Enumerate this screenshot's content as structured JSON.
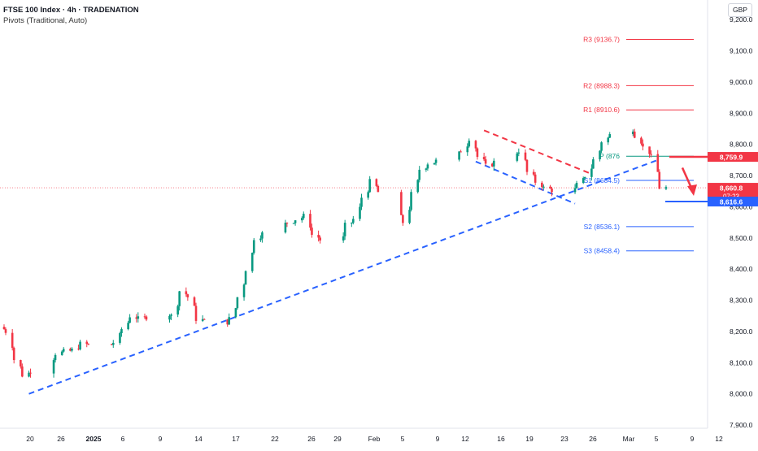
{
  "header": {
    "title": "FTSE 100 Index · 4h · TRADENATION",
    "indicator": "Pivots (Traditional, Auto)",
    "currency": "GBP"
  },
  "chart_data": {
    "type": "candlestick",
    "title": "FTSE 100 Index · 4h · TRADENATION",
    "ylim": [
      7900,
      9250
    ],
    "y_ticks": [
      7900,
      8000,
      8100,
      8200,
      8300,
      8400,
      8500,
      8600,
      8700,
      8800,
      8900,
      9000,
      9100,
      9200
    ],
    "y_tick_labels": [
      "7,900.0",
      "8,000.0",
      "8,100.0",
      "8,200.0",
      "8,300.0",
      "8,400.0",
      "8,500.0",
      "8,600.0",
      "8,700.0",
      "8,800.0",
      "8,900.0",
      "9,000.0",
      "9,100.0",
      "9,200.0"
    ],
    "x_ticks": [
      {
        "label": "20",
        "bold": false
      },
      {
        "label": "26",
        "bold": false
      },
      {
        "label": "2025",
        "bold": true
      },
      {
        "label": "6",
        "bold": false
      },
      {
        "label": "9",
        "bold": false
      },
      {
        "label": "14",
        "bold": false
      },
      {
        "label": "17",
        "bold": false
      },
      {
        "label": "22",
        "bold": false
      },
      {
        "label": "26",
        "bold": false
      },
      {
        "label": "29",
        "bold": false
      },
      {
        "label": "Feb",
        "bold": false
      },
      {
        "label": "5",
        "bold": false
      },
      {
        "label": "9",
        "bold": false
      },
      {
        "label": "12",
        "bold": false
      },
      {
        "label": "16",
        "bold": false
      },
      {
        "label": "19",
        "bold": false
      },
      {
        "label": "23",
        "bold": false
      },
      {
        "label": "26",
        "bold": false
      },
      {
        "label": "Mar",
        "bold": false
      },
      {
        "label": "5",
        "bold": false
      },
      {
        "label": "9",
        "bold": false
      },
      {
        "label": "12",
        "bold": false
      }
    ],
    "pivots": [
      {
        "name": "R3",
        "label": "R3 (9136.7)",
        "value": 9136.7,
        "color": "#f23645"
      },
      {
        "name": "R2",
        "label": "R2 (8988.3)",
        "value": 8988.3,
        "color": "#f23645"
      },
      {
        "name": "R1",
        "label": "R1 (8910.6)",
        "value": 8910.6,
        "color": "#f23645"
      },
      {
        "name": "P",
        "label": "P (876",
        "value": 8762,
        "color": "#089981"
      },
      {
        "name": "S1",
        "label": "S1 (8684.5)",
        "value": 8684.5,
        "color": "#2962ff"
      },
      {
        "name": "S2",
        "label": "S2 (8536.1)",
        "value": 8536.1,
        "color": "#2962ff"
      },
      {
        "name": "S3",
        "label": "S3 (8458.4)",
        "value": 8458.4,
        "color": "#2962ff"
      }
    ],
    "price_badges": [
      {
        "label": "8,759.9",
        "value": 8759.9,
        "color": "#f23645"
      },
      {
        "label": "8,660.8",
        "value": 8660.8,
        "sub": "07:23",
        "color": "#f23645"
      },
      {
        "label": "8,616.6",
        "value": 8616.6,
        "color": "#2962ff"
      }
    ],
    "current_price": 8660.8,
    "resistance_level": 8759.9,
    "target_level": 8616.6,
    "trendlines": [
      {
        "name": "uptrend-support",
        "color": "#2962ff",
        "dashed": true,
        "points": [
          {
            "x": "2024-12-20",
            "y": 8000
          },
          {
            "x": "2025-03-06",
            "y": 8750
          }
        ]
      },
      {
        "name": "channel-upper",
        "color": "#f23645",
        "dashed": true,
        "points": [
          {
            "x": "2025-02-13",
            "y": 8845
          },
          {
            "x": "2025-02-26",
            "y": 8705
          }
        ]
      },
      {
        "name": "channel-lower",
        "color": "#2962ff",
        "dashed": true,
        "points": [
          {
            "x": "2025-02-12",
            "y": 8745
          },
          {
            "x": "2025-02-24",
            "y": 8610
          }
        ]
      }
    ],
    "price_path": [
      [
        "2024-12-17",
        8215
      ],
      [
        "2024-12-18",
        8200
      ],
      [
        "2024-12-19",
        8110
      ],
      [
        "2024-12-20",
        8060
      ],
      [
        "2024-12-23",
        8100
      ],
      [
        "2024-12-24",
        8130
      ],
      [
        "2024-12-26",
        8140
      ],
      [
        "2024-12-27",
        8160
      ],
      [
        "2024-12-30",
        8150
      ],
      [
        "2024-12-31",
        8165
      ],
      [
        "2025-01-02",
        8250
      ],
      [
        "2025-01-03",
        8240
      ],
      [
        "2025-01-06",
        8260
      ],
      [
        "2025-01-07",
        8250
      ],
      [
        "2025-01-08",
        8330
      ],
      [
        "2025-01-09",
        8310
      ],
      [
        "2025-01-10",
        8240
      ],
      [
        "2025-01-13",
        8220
      ],
      [
        "2025-01-14",
        8240
      ],
      [
        "2025-01-15",
        8310
      ],
      [
        "2025-01-16",
        8400
      ],
      [
        "2025-01-17",
        8500
      ],
      [
        "2025-01-20",
        8540
      ],
      [
        "2025-01-21",
        8550
      ],
      [
        "2025-01-22",
        8560
      ],
      [
        "2025-01-23",
        8570
      ],
      [
        "2025-01-24",
        8510
      ],
      [
        "2025-01-27",
        8460
      ],
      [
        "2025-01-28",
        8540
      ],
      [
        "2025-01-29",
        8560
      ],
      [
        "2025-01-30",
        8630
      ],
      [
        "2025-01-31",
        8680
      ],
      [
        "2025-02-03",
        8580
      ],
      [
        "2025-02-04",
        8550
      ],
      [
        "2025-02-05",
        8640
      ],
      [
        "2025-02-06",
        8720
      ],
      [
        "2025-02-07",
        8740
      ],
      [
        "2025-02-10",
        8760
      ],
      [
        "2025-02-11",
        8780
      ],
      [
        "2025-02-12",
        8820
      ],
      [
        "2025-02-13",
        8760
      ],
      [
        "2025-02-14",
        8730
      ],
      [
        "2025-02-17",
        8770
      ],
      [
        "2025-02-18",
        8780
      ],
      [
        "2025-02-19",
        8710
      ],
      [
        "2025-02-20",
        8680
      ],
      [
        "2025-02-21",
        8660
      ],
      [
        "2025-02-24",
        8640
      ],
      [
        "2025-02-25",
        8670
      ],
      [
        "2025-02-26",
        8700
      ],
      [
        "2025-02-27",
        8750
      ],
      [
        "2025-02-28",
        8810
      ],
      [
        "2025-03-03",
        8870
      ],
      [
        "2025-03-04",
        8830
      ],
      [
        "2025-03-05",
        8790
      ],
      [
        "2025-03-06",
        8760
      ],
      [
        "2025-03-07",
        8660.8
      ]
    ]
  }
}
